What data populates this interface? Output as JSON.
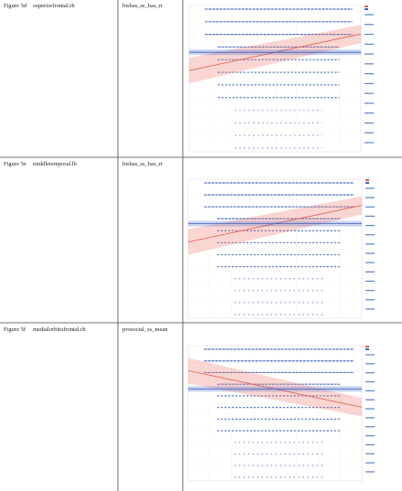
{
  "table": {
    "rows": [
      [
        "Figure 5d",
        "superiorfrontal.rh",
        "bisbas_ss_bas_rr"
      ],
      [
        "Figure 5e",
        "middletemporal.lh",
        "bisbas_ss_bas_rr"
      ],
      [
        "Figure 5f",
        "medialorbitofrontal.rh",
        "prosocial_ss_mean"
      ]
    ]
  }
}
